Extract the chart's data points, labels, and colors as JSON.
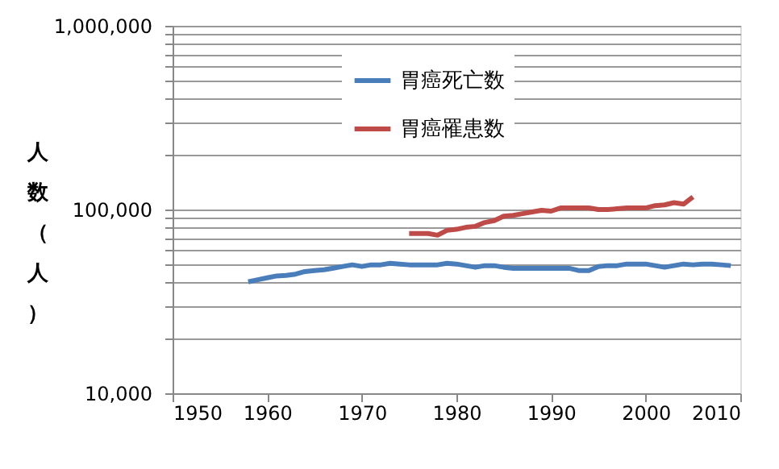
{
  "chart_data": {
    "type": "line",
    "ylabel": "人数（人）",
    "log": true,
    "grid": "y",
    "legend": "top",
    "line_style": "solid",
    "marker": "none",
    "xlim": [
      1950,
      2010
    ],
    "xticks": [
      1950,
      1960,
      1970,
      1980,
      1990,
      2000,
      2010
    ],
    "ylim": [
      10000,
      1000000
    ],
    "yticks": [
      {
        "value": 10000,
        "label": "10,000"
      },
      {
        "value": 20000,
        "label": null
      },
      {
        "value": 30000,
        "label": null
      },
      {
        "value": 40000,
        "label": null
      },
      {
        "value": 50000,
        "label": null
      },
      {
        "value": 60000,
        "label": null
      },
      {
        "value": 70000,
        "label": null
      },
      {
        "value": 80000,
        "label": null
      },
      {
        "value": 90000,
        "label": null
      },
      {
        "value": 100000,
        "label": "100,000"
      },
      {
        "value": 200000,
        "label": null
      },
      {
        "value": 300000,
        "label": null
      },
      {
        "value": 400000,
        "label": null
      },
      {
        "value": 500000,
        "label": null
      },
      {
        "value": 600000,
        "label": null
      },
      {
        "value": 700000,
        "label": null
      },
      {
        "value": 800000,
        "label": null
      },
      {
        "value": 900000,
        "label": null
      },
      {
        "value": 1000000,
        "label": "1,000,000"
      }
    ],
    "series": [
      {
        "name": "胃癌死亡数",
        "color": "#4a7ebb",
        "x": [
          1958,
          1959,
          1960,
          1961,
          1962,
          1963,
          1964,
          1965,
          1966,
          1967,
          1968,
          1969,
          1970,
          1971,
          1972,
          1973,
          1974,
          1975,
          1976,
          1977,
          1978,
          1979,
          1980,
          1981,
          1982,
          1983,
          1984,
          1985,
          1986,
          1987,
          1988,
          1989,
          1990,
          1991,
          1992,
          1993,
          1994,
          1995,
          1996,
          1997,
          1998,
          1999,
          2000,
          2001,
          2002,
          2003,
          2004,
          2005,
          2006,
          2007,
          2008,
          2009
        ],
        "values": [
          40400,
          41500,
          42500,
          43500,
          43800,
          44500,
          46000,
          46500,
          47000,
          48000,
          49000,
          50000,
          49000,
          50000,
          50000,
          51000,
          50500,
          50000,
          50000,
          50000,
          50000,
          51000,
          50500,
          49500,
          48500,
          49500,
          49500,
          48500,
          47800,
          47800,
          47800,
          47800,
          47800,
          47800,
          47800,
          46500,
          46500,
          49000,
          49500,
          49500,
          50500,
          50500,
          50500,
          49500,
          48500,
          49500,
          50500,
          50000,
          50500,
          50500,
          50000,
          49500
        ]
      },
      {
        "name": "胃癌罹患数",
        "color": "#be4b48",
        "x": [
          1975,
          1976,
          1977,
          1978,
          1979,
          1980,
          1981,
          1982,
          1983,
          1984,
          1985,
          1986,
          1987,
          1988,
          1989,
          1990,
          1991,
          1992,
          1993,
          1994,
          1995,
          1996,
          1997,
          1998,
          1999,
          2000,
          2001,
          2002,
          2003,
          2004,
          2005
        ],
        "values": [
          74000,
          74000,
          74000,
          72500,
          77000,
          78000,
          80000,
          81000,
          85000,
          87000,
          92000,
          93000,
          95000,
          97000,
          99000,
          98000,
          102000,
          102000,
          102000,
          102000,
          100000,
          100000,
          101000,
          102000,
          102000,
          102000,
          105000,
          106000,
          109000,
          107000,
          117000
        ]
      }
    ]
  }
}
